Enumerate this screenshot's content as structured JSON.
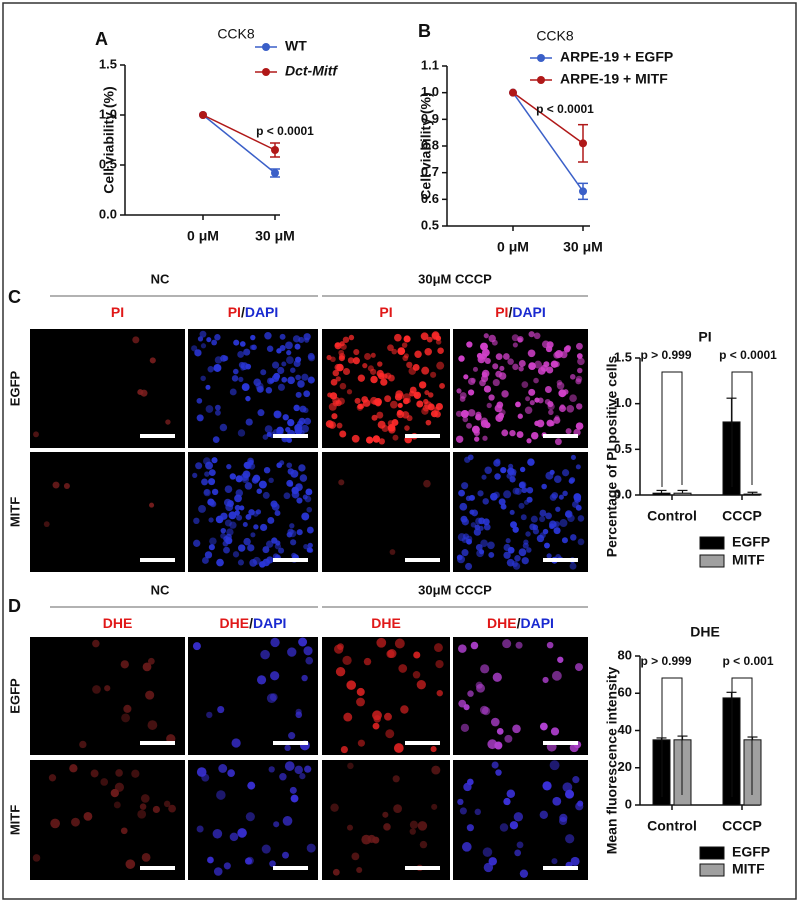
{
  "chart_data": [
    {
      "type": "line",
      "label": "A",
      "title": "CCK8",
      "ylabel": "Cell viability (%)",
      "categories": [
        "0 μM",
        "30 μM"
      ],
      "series": [
        {
          "name": "WT",
          "color": "#3a5fc8",
          "values": [
            1.0,
            0.42
          ],
          "errors": [
            null,
            0.04
          ]
        },
        {
          "name": "Dct-Mitf",
          "color": "#b01818",
          "values": [
            1.0,
            0.65
          ],
          "errors": [
            null,
            0.07
          ]
        }
      ],
      "ylim": [
        0,
        1.5
      ],
      "yticks": [
        {
          "value": 0,
          "label": "0.0"
        },
        0.5,
        {
          "value": 1,
          "label": "1.0"
        },
        1.5
      ],
      "annotations": [
        "p < 0.0001"
      ]
    },
    {
      "type": "line",
      "label": "B",
      "title": "CCK8",
      "ylabel": "Cell viability (%)",
      "categories": [
        "0 μM",
        "30 μM"
      ],
      "series": [
        {
          "name": "ARPE-19 + EGFP",
          "color": "#3a5fc8",
          "values": [
            1.0,
            0.63
          ],
          "errors": [
            null,
            0.03
          ]
        },
        {
          "name": "ARPE-19 + MITF",
          "color": "#b01818",
          "values": [
            1.0,
            0.81
          ],
          "errors": [
            null,
            0.07
          ]
        }
      ],
      "ylim": [
        0.5,
        1.1
      ],
      "yticks": [
        0.5,
        0.6,
        0.7,
        0.8,
        0.9,
        {
          "value": 1,
          "label": "1.0"
        },
        1.1
      ],
      "annotations": [
        "p < 0.0001"
      ]
    },
    {
      "type": "bar",
      "title": "PI",
      "ylabel": "Percentage of PI positive cells",
      "categories": [
        "Control",
        "CCCP"
      ],
      "series": [
        {
          "name": "EGFP",
          "color": "#000000",
          "values": [
            0.02,
            0.8
          ],
          "errors": [
            0.03,
            0.26
          ]
        },
        {
          "name": "MITF",
          "color": "#a0a0a0",
          "values": [
            0.02,
            0.01
          ],
          "errors": [
            0.03,
            0.02
          ]
        }
      ],
      "ylim": [
        0,
        1.5
      ],
      "yticks": [
        {
          "value": 0,
          "label": "0.0"
        },
        0.5,
        {
          "value": 1,
          "label": "1.0"
        },
        1.5
      ],
      "annotations": [
        "p > 0.999",
        "p < 0.0001"
      ]
    },
    {
      "type": "bar",
      "title": "DHE",
      "ylabel": "Mean fluorescence intensity",
      "categories": [
        "Control",
        "CCCP"
      ],
      "series": [
        {
          "name": "EGFP",
          "color": "#000000",
          "values": [
            35,
            57.5
          ],
          "errors": [
            1,
            3
          ]
        },
        {
          "name": "MITF",
          "color": "#a0a0a0",
          "values": [
            35,
            35
          ],
          "errors": [
            2,
            1.5
          ]
        }
      ],
      "ylim": [
        0,
        80
      ],
      "yticks": [
        0,
        20,
        40,
        60,
        80
      ],
      "annotations": [
        "p > 0.999",
        "p < 0.001"
      ]
    }
  ],
  "panels": [
    {
      "label": "C",
      "groups": [
        "NC",
        "30μM CCCP"
      ],
      "columns": [
        [
          "PI"
        ],
        [
          "PI",
          "/",
          "DAPI"
        ],
        [
          "PI"
        ],
        [
          "PI",
          "/",
          "DAPI"
        ]
      ],
      "rows": [
        "EGFP",
        "MITF"
      ]
    },
    {
      "label": "D",
      "groups": [
        "NC",
        "30μM CCCP"
      ],
      "columns": [
        [
          "DHE"
        ],
        [
          "DHE",
          "/",
          "DAPI"
        ],
        [
          "DHE"
        ],
        [
          "DHE",
          "/",
          "DAPI"
        ]
      ],
      "rows": [
        "EGFP",
        "MITF"
      ]
    }
  ]
}
